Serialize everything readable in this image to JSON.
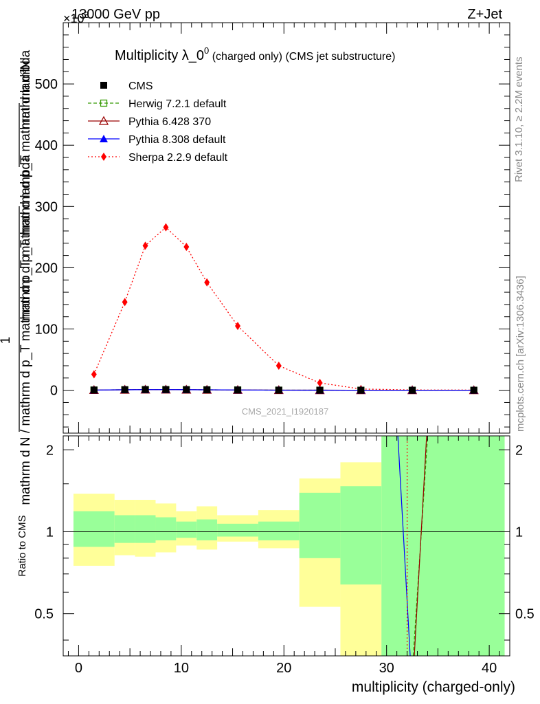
{
  "header": {
    "left": "13000 GeV pp",
    "right": "Z+Jet",
    "exponent": "×10",
    "exponent_power": "3"
  },
  "title": {
    "main": "Multiplicity λ_0",
    "sup": "0",
    "sub": " (charged only) (CMS jet substructure)"
  },
  "side_labels": {
    "rivet": "Rivet 3.1.10, ≥ 2.2M events",
    "mcplots": "mcplots.cern.ch [arXiv:1306.3436]"
  },
  "watermark": "CMS_2021_I1920187",
  "main_ylabel_top": "mathrm d²N",
  "main_ylabel_mid": "mathrm d p_T mathrm d p_T mathrm d lambda",
  "main_ylabel_one": "1",
  "main_ylabel_bottom": "mathrm d N / mathrm d p_T mathrm d p_T mathrm d lambda",
  "ratio_ylabel": "Ratio to CMS",
  "xlabel": "multiplicity (charged-only)",
  "legend": [
    {
      "label": "CMS",
      "color": "#000000",
      "marker": "filled-square",
      "dash": "none"
    },
    {
      "label": "Herwig 7.2.1 default",
      "color": "#339900",
      "marker": "open-square",
      "dash": "dashed"
    },
    {
      "label": "Pythia 6.428 370",
      "color": "#990000",
      "marker": "open-triangle",
      "dash": "solid"
    },
    {
      "label": "Pythia 8.308 default",
      "color": "#0000ff",
      "marker": "filled-triangle",
      "dash": "solid"
    },
    {
      "label": "Sherpa 2.2.9 default",
      "color": "#ff0000",
      "marker": "filled-diamond",
      "dash": "dotted"
    }
  ],
  "chart_data": [
    {
      "type": "line",
      "panel": "main",
      "title": "Multiplicity λ_0^0 (charged only) (CMS jet substructure)",
      "xlabel": "multiplicity (charged-only)",
      "ylabel": "1/mathrm d N / mathrm d p_T mathrm d p_T mathrm d lambda · mathrm d²N / mathrm d p_T mathrm d p_T mathrm d lambda",
      "xlim": [
        -1.5,
        42
      ],
      "ylim": [
        -70,
        600
      ],
      "y_scale_factor": "×10^3",
      "xticks": [
        0,
        10,
        20,
        30,
        40
      ],
      "yticks": [
        0,
        100,
        200,
        300,
        400,
        500
      ],
      "series": [
        {
          "name": "CMS",
          "x": [
            1.5,
            4.5,
            6.5,
            8.5,
            10.5,
            12.5,
            15.5,
            19.5,
            23.5,
            27.5,
            32.5,
            38.5
          ],
          "y": [
            0.3,
            0.8,
            1.0,
            1.0,
            0.9,
            0.7,
            0.4,
            0.15,
            0.05,
            0.01,
            0.0,
            0.0
          ]
        },
        {
          "name": "Herwig 7.2.1 default",
          "x": [
            1.5,
            4.5,
            6.5,
            8.5,
            10.5,
            12.5,
            15.5,
            19.5,
            23.5,
            27.5,
            32.5,
            38.5
          ],
          "y": [
            0.3,
            0.8,
            1.0,
            1.0,
            0.9,
            0.7,
            0.4,
            0.15,
            0.05,
            0.01,
            0.0,
            0.0
          ]
        },
        {
          "name": "Pythia 6.428 370",
          "x": [
            1.5,
            4.5,
            6.5,
            8.5,
            10.5,
            12.5,
            15.5,
            19.5,
            23.5,
            27.5,
            32.5,
            38.5
          ],
          "y": [
            0.3,
            0.8,
            1.0,
            1.0,
            0.9,
            0.7,
            0.4,
            0.15,
            0.05,
            0.01,
            0.0,
            0.0
          ]
        },
        {
          "name": "Pythia 8.308 default",
          "x": [
            1.5,
            4.5,
            6.5,
            8.5,
            10.5,
            12.5,
            15.5,
            19.5,
            23.5,
            27.5,
            32.5,
            38.5
          ],
          "y": [
            0.3,
            0.8,
            1.0,
            1.0,
            0.9,
            0.7,
            0.4,
            0.15,
            0.05,
            0.01,
            0.0,
            0.0
          ]
        },
        {
          "name": "Sherpa 2.2.9 default",
          "x": [
            1.5,
            4.5,
            6.5,
            8.5,
            10.5,
            12.5,
            15.5,
            19.5,
            23.5,
            27.5,
            32.5,
            38.5
          ],
          "y": [
            26,
            144,
            236,
            266,
            234,
            176,
            105,
            40,
            12,
            2,
            0.5,
            0.3
          ]
        }
      ]
    },
    {
      "type": "area",
      "panel": "ratio",
      "ylabel": "Ratio to CMS",
      "xlabel": "multiplicity (charged-only)",
      "xlim": [
        -1.5,
        42
      ],
      "ylim": [
        0.35,
        2.25
      ],
      "yticks": [
        0.5,
        1,
        2
      ],
      "bins": [
        {
          "x_lo": -0.5,
          "x_hi": 3.5,
          "yellow": [
            0.75,
            1.38
          ],
          "green": [
            0.88,
            1.19
          ]
        },
        {
          "x_lo": 3.5,
          "x_hi": 5.5,
          "yellow": [
            0.82,
            1.31
          ],
          "green": [
            0.91,
            1.15
          ]
        },
        {
          "x_lo": 5.5,
          "x_hi": 7.5,
          "yellow": [
            0.81,
            1.31
          ],
          "green": [
            0.91,
            1.15
          ]
        },
        {
          "x_lo": 7.5,
          "x_hi": 9.5,
          "yellow": [
            0.84,
            1.27
          ],
          "green": [
            0.93,
            1.13
          ]
        },
        {
          "x_lo": 9.5,
          "x_hi": 11.5,
          "yellow": [
            0.89,
            1.19
          ],
          "green": [
            0.95,
            1.09
          ]
        },
        {
          "x_lo": 11.5,
          "x_hi": 13.5,
          "yellow": [
            0.86,
            1.24
          ],
          "green": [
            0.93,
            1.11
          ]
        },
        {
          "x_lo": 13.5,
          "x_hi": 17.5,
          "yellow": [
            0.92,
            1.15
          ],
          "green": [
            0.96,
            1.07
          ]
        },
        {
          "x_lo": 17.5,
          "x_hi": 21.5,
          "yellow": [
            0.87,
            1.2
          ],
          "green": [
            0.93,
            1.09
          ]
        },
        {
          "x_lo": 21.5,
          "x_hi": 25.5,
          "yellow": [
            0.53,
            1.57
          ],
          "green": [
            0.8,
            1.39
          ]
        },
        {
          "x_lo": 25.5,
          "x_hi": 29.5,
          "yellow": [
            0.35,
            1.8
          ],
          "green": [
            0.64,
            1.47
          ]
        },
        {
          "x_lo": 29.5,
          "x_hi": 41.5,
          "yellow": [
            0.35,
            2.25
          ],
          "green": [
            0.35,
            2.25
          ]
        }
      ],
      "series": [
        {
          "name": "Herwig 7.2.1 default",
          "x": [
            32.6,
            34.0
          ],
          "y": [
            0.35,
            2.25
          ]
        },
        {
          "name": "Pythia 6.428 370",
          "x": [
            32.7,
            33.9
          ],
          "y": [
            0.35,
            2.25
          ]
        },
        {
          "name": "Pythia 8.308 default",
          "x": [
            32.3,
            31.1
          ],
          "y": [
            0.35,
            2.25
          ]
        },
        {
          "name": "Sherpa 2.2.9 default",
          "x": [
            32.0,
            32.0
          ],
          "y": [
            0.35,
            2.25
          ]
        }
      ]
    }
  ]
}
